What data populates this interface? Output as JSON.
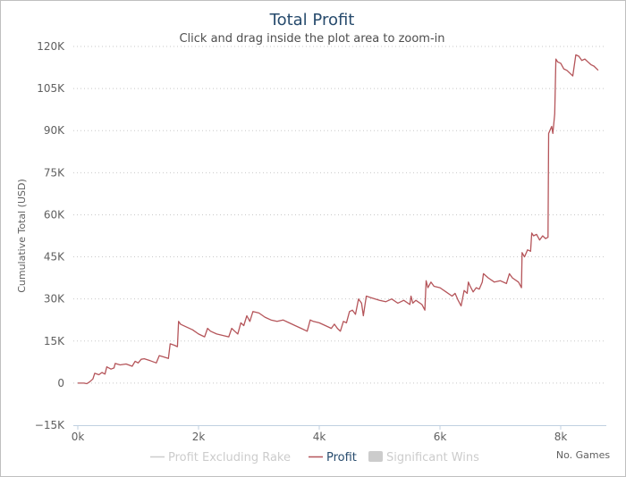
{
  "chart_data": {
    "type": "line",
    "title": "Total Profit",
    "subtitle": "Click and drag inside the plot area to zoom-in",
    "ylabel": "Cumulative Total (USD)",
    "xlabel": "No. Games",
    "xlim": [
      0,
      8650
    ],
    "ylim": [
      -15000,
      120000
    ],
    "x_ticks": [
      0,
      2000,
      4000,
      6000,
      8000
    ],
    "x_tick_labels": [
      "0k",
      "2k",
      "4k",
      "6k",
      "8k"
    ],
    "y_ticks": [
      -15000,
      0,
      15000,
      30000,
      45000,
      60000,
      75000,
      90000,
      105000,
      120000
    ],
    "y_tick_labels": [
      "−15K",
      "0",
      "15K",
      "30K",
      "45K",
      "60K",
      "75K",
      "90K",
      "105K",
      "120K"
    ],
    "grid": true,
    "legend_position": "bottom",
    "colors": {
      "profit": "#b5555a",
      "title": "#274b6d",
      "legend_inactive": "#cccccc",
      "grid": "#c8c8c8"
    },
    "legend": [
      {
        "label": "Profit Excluding Rake",
        "active": false,
        "marker": "line"
      },
      {
        "label": "Profit",
        "active": true,
        "marker": "line"
      },
      {
        "label": "Significant Wins",
        "active": false,
        "marker": "box"
      }
    ],
    "series": [
      {
        "name": "Profit",
        "points": [
          [
            0,
            0
          ],
          [
            100,
            0
          ],
          [
            150,
            -200
          ],
          [
            200,
            500
          ],
          [
            250,
            1500
          ],
          [
            280,
            3500
          ],
          [
            350,
            3000
          ],
          [
            400,
            3800
          ],
          [
            450,
            3200
          ],
          [
            480,
            5800
          ],
          [
            550,
            5000
          ],
          [
            600,
            5400
          ],
          [
            620,
            7000
          ],
          [
            700,
            6500
          ],
          [
            800,
            6800
          ],
          [
            900,
            6000
          ],
          [
            950,
            7800
          ],
          [
            1000,
            7200
          ],
          [
            1050,
            8500
          ],
          [
            1100,
            8700
          ],
          [
            1200,
            8000
          ],
          [
            1300,
            7200
          ],
          [
            1350,
            9800
          ],
          [
            1400,
            9500
          ],
          [
            1500,
            8800
          ],
          [
            1530,
            14000
          ],
          [
            1600,
            13500
          ],
          [
            1650,
            13000
          ],
          [
            1670,
            22000
          ],
          [
            1700,
            21000
          ],
          [
            1800,
            20000
          ],
          [
            1900,
            19000
          ],
          [
            2000,
            17500
          ],
          [
            2050,
            17000
          ],
          [
            2100,
            16500
          ],
          [
            2150,
            19500
          ],
          [
            2200,
            18500
          ],
          [
            2300,
            17500
          ],
          [
            2400,
            17000
          ],
          [
            2500,
            16500
          ],
          [
            2550,
            19500
          ],
          [
            2600,
            18500
          ],
          [
            2650,
            17500
          ],
          [
            2700,
            21500
          ],
          [
            2750,
            20500
          ],
          [
            2800,
            24000
          ],
          [
            2850,
            22000
          ],
          [
            2900,
            25500
          ],
          [
            3000,
            25000
          ],
          [
            3100,
            23500
          ],
          [
            3200,
            22500
          ],
          [
            3300,
            22000
          ],
          [
            3400,
            22500
          ],
          [
            3500,
            21500
          ],
          [
            3600,
            20500
          ],
          [
            3700,
            19500
          ],
          [
            3800,
            18500
          ],
          [
            3850,
            22500
          ],
          [
            3900,
            22000
          ],
          [
            4000,
            21500
          ],
          [
            4100,
            20500
          ],
          [
            4200,
            19500
          ],
          [
            4250,
            21000
          ],
          [
            4300,
            19500
          ],
          [
            4350,
            18500
          ],
          [
            4400,
            22000
          ],
          [
            4450,
            21500
          ],
          [
            4500,
            25500
          ],
          [
            4550,
            26000
          ],
          [
            4600,
            24500
          ],
          [
            4650,
            30000
          ],
          [
            4700,
            28500
          ],
          [
            4730,
            24000
          ],
          [
            4780,
            31000
          ],
          [
            4850,
            30500
          ],
          [
            5000,
            29500
          ],
          [
            5100,
            29000
          ],
          [
            5200,
            30000
          ],
          [
            5300,
            28500
          ],
          [
            5400,
            29500
          ],
          [
            5500,
            28000
          ],
          [
            5520,
            31000
          ],
          [
            5550,
            28500
          ],
          [
            5600,
            29500
          ],
          [
            5700,
            28000
          ],
          [
            5750,
            26000
          ],
          [
            5770,
            36500
          ],
          [
            5800,
            34000
          ],
          [
            5850,
            36000
          ],
          [
            5900,
            34500
          ],
          [
            6000,
            34000
          ],
          [
            6100,
            32500
          ],
          [
            6200,
            31000
          ],
          [
            6250,
            32000
          ],
          [
            6300,
            29500
          ],
          [
            6350,
            27500
          ],
          [
            6400,
            33000
          ],
          [
            6450,
            32000
          ],
          [
            6470,
            36000
          ],
          [
            6500,
            34500
          ],
          [
            6550,
            32500
          ],
          [
            6600,
            34000
          ],
          [
            6650,
            33500
          ],
          [
            6700,
            36000
          ],
          [
            6720,
            39000
          ],
          [
            6800,
            37500
          ],
          [
            6900,
            36000
          ],
          [
            7000,
            36500
          ],
          [
            7100,
            35500
          ],
          [
            7150,
            39000
          ],
          [
            7200,
            37500
          ],
          [
            7300,
            36000
          ],
          [
            7350,
            34000
          ],
          [
            7360,
            46500
          ],
          [
            7400,
            45000
          ],
          [
            7450,
            47500
          ],
          [
            7500,
            47000
          ],
          [
            7520,
            53500
          ],
          [
            7550,
            52500
          ],
          [
            7600,
            53000
          ],
          [
            7650,
            51000
          ],
          [
            7700,
            52500
          ],
          [
            7750,
            51500
          ],
          [
            7790,
            52000
          ],
          [
            7800,
            89000
          ],
          [
            7850,
            91500
          ],
          [
            7870,
            89000
          ],
          [
            7900,
            96000
          ],
          [
            7920,
            115500
          ],
          [
            7950,
            114500
          ],
          [
            8000,
            114000
          ],
          [
            8050,
            112000
          ],
          [
            8100,
            111500
          ],
          [
            8150,
            110500
          ],
          [
            8200,
            109500
          ],
          [
            8250,
            117000
          ],
          [
            8300,
            116500
          ],
          [
            8350,
            115000
          ],
          [
            8400,
            115500
          ],
          [
            8450,
            114500
          ],
          [
            8500,
            113500
          ],
          [
            8550,
            113000
          ],
          [
            8620,
            111500
          ]
        ]
      }
    ]
  }
}
